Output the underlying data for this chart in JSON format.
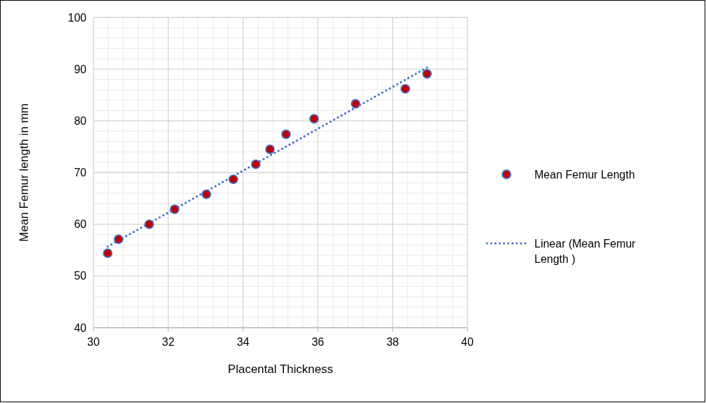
{
  "chart_data": {
    "type": "scatter",
    "xlabel": "Placental Thickness",
    "ylabel": "Mean Femur length in mm",
    "xlim": [
      30,
      40
    ],
    "xticks": [
      30,
      32,
      34,
      36,
      38,
      40
    ],
    "ylim": [
      40,
      100
    ],
    "yticks": [
      40,
      50,
      60,
      70,
      80,
      90,
      100
    ],
    "grid": true,
    "legend": "right",
    "series": [
      {
        "name": "Mean Femur Length",
        "color": "#c00000",
        "marker": "circle",
        "x": [
          30.38,
          30.67,
          31.49,
          32.17,
          33.02,
          33.74,
          34.34,
          34.72,
          35.15,
          35.9,
          37.01,
          38.34,
          38.92
        ],
        "values": [
          54.4,
          57.1,
          60.0,
          62.9,
          65.8,
          68.7,
          71.6,
          74.5,
          77.4,
          80.4,
          83.3,
          86.2,
          89.1
        ]
      },
      {
        "name": "Linear (Mean Femur Length )",
        "type": "line",
        "color": "#4472c4",
        "line_style": "dotted",
        "marker": "none",
        "x": [
          30.38,
          38.92
        ],
        "values": [
          55.7,
          90.3
        ]
      }
    ]
  }
}
